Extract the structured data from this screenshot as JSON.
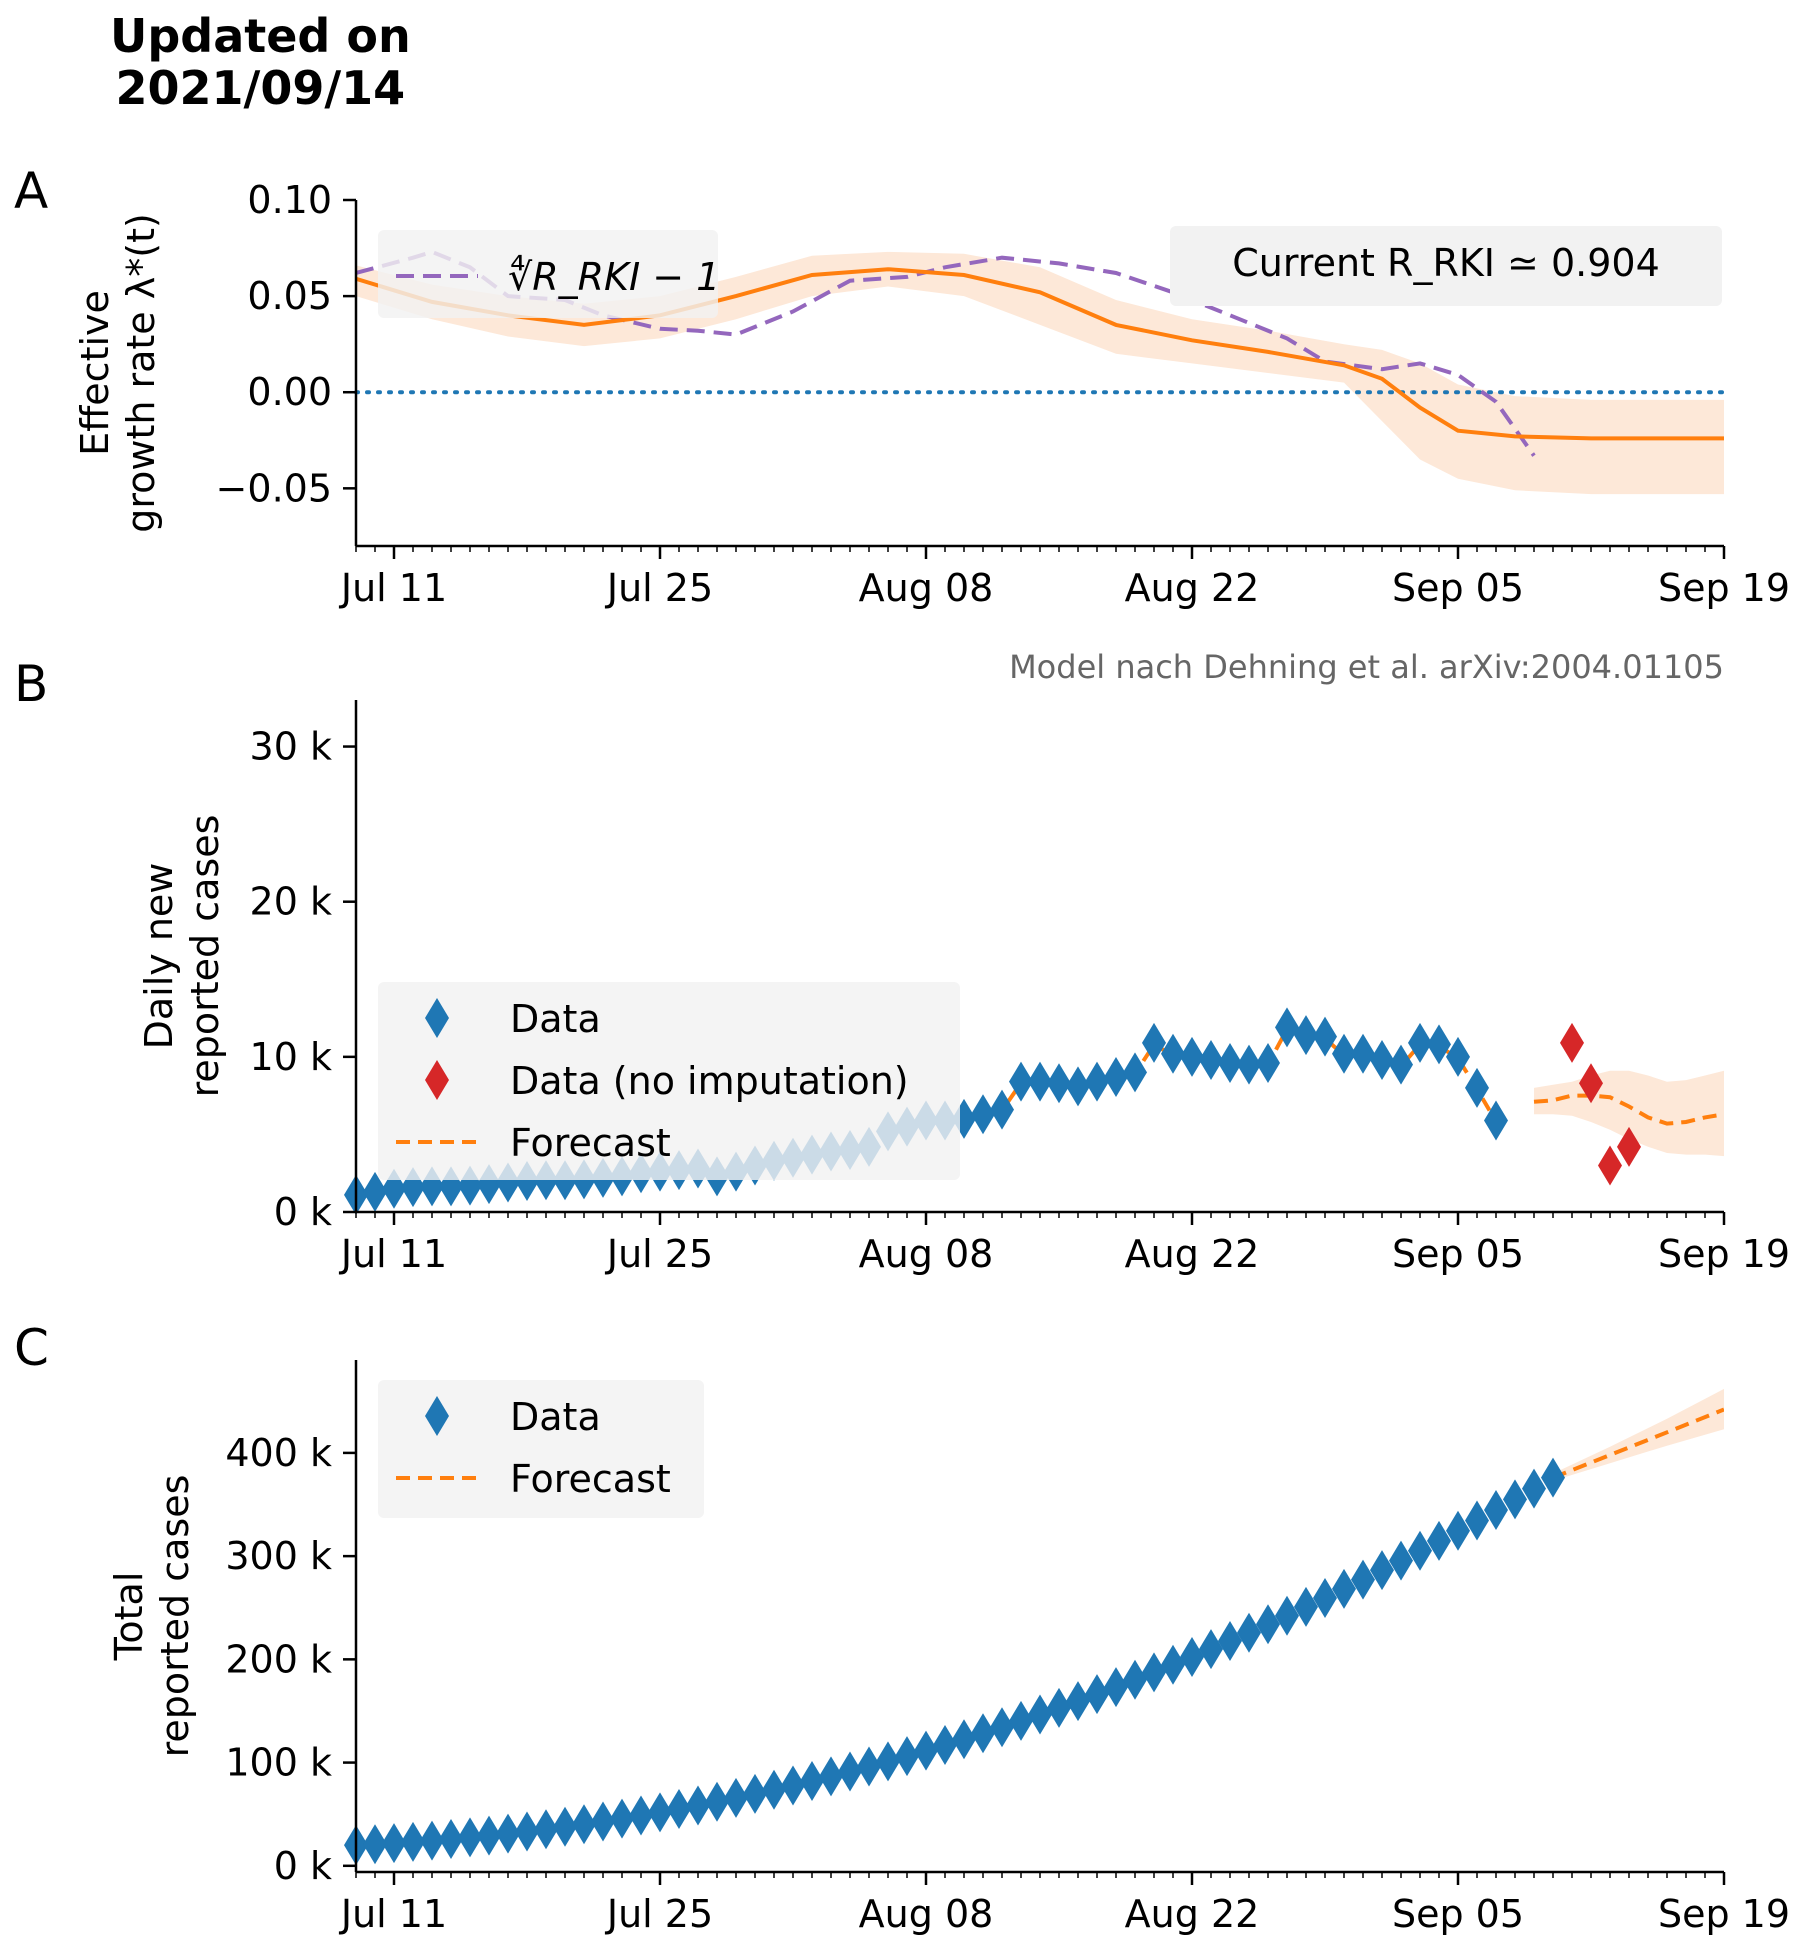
{
  "header": {
    "title_line1": "Updated on",
    "title_line2": "2021/09/14"
  },
  "panel_letters": [
    "A",
    "B",
    "C"
  ],
  "credit": "Model nach Dehning et al. arXiv:2004.01105",
  "colors": {
    "data": "#1f77b4",
    "model": "#ff7f0e",
    "band": "#fde8d8",
    "rki": "#9467bd",
    "zero": "#1f77b4",
    "no_imputation": "#d62728",
    "legend_bg": "#f2f2f2"
  },
  "x_axis": {
    "tick_labels": [
      "Jul 11",
      "Jul 25",
      "Aug 08",
      "Aug 22",
      "Sep 05",
      "Sep 19"
    ]
  },
  "chart_data": [
    {
      "type": "line",
      "panel": "A",
      "ylabel_line1": "Effective",
      "ylabel_line2": "growth rate λ*(t)",
      "ylim": [
        -0.08,
        0.1
      ],
      "yticks": [
        "0.10",
        "0.05",
        "0.00",
        "−0.05"
      ],
      "ytick_values": [
        0.1,
        0.05,
        0.0,
        -0.05
      ],
      "xlim": [
        "2021-07-09",
        "2021-09-19"
      ],
      "legend_label": "∜R_RKI − 1",
      "annotation": "Current R_RKI ≃ 0.904",
      "series": [
        {
          "role": "model",
          "x": [
            "2021-07-09",
            "2021-07-13",
            "2021-07-17",
            "2021-07-21",
            "2021-07-25",
            "2021-07-29",
            "2021-08-02",
            "2021-08-06",
            "2021-08-10",
            "2021-08-14",
            "2021-08-18",
            "2021-08-22",
            "2021-08-26",
            "2021-08-30",
            "2021-09-01",
            "2021-09-03",
            "2021-09-05",
            "2021-09-08",
            "2021-09-12",
            "2021-09-19"
          ],
          "y": [
            0.059,
            0.047,
            0.04,
            0.035,
            0.04,
            0.05,
            0.061,
            0.064,
            0.061,
            0.052,
            0.035,
            0.027,
            0.021,
            0.014,
            0.007,
            -0.008,
            -0.02,
            -0.023,
            -0.024,
            -0.024
          ],
          "y_lower": [
            0.05,
            0.038,
            0.029,
            0.024,
            0.028,
            0.038,
            0.05,
            0.055,
            0.05,
            0.035,
            0.02,
            0.015,
            0.01,
            0.005,
            -0.015,
            -0.035,
            -0.045,
            -0.051,
            -0.053,
            -0.053
          ],
          "y_upper": [
            0.066,
            0.056,
            0.05,
            0.046,
            0.05,
            0.06,
            0.071,
            0.073,
            0.072,
            0.065,
            0.048,
            0.038,
            0.032,
            0.025,
            0.022,
            0.015,
            0.004,
            -0.002,
            -0.004,
            -0.004
          ]
        },
        {
          "role": "rki",
          "x": [
            "2021-07-09",
            "2021-07-12",
            "2021-07-13",
            "2021-07-15",
            "2021-07-17",
            "2021-07-20",
            "2021-07-22",
            "2021-07-25",
            "2021-07-27",
            "2021-07-29",
            "2021-08-01",
            "2021-08-04",
            "2021-08-07",
            "2021-08-09",
            "2021-08-12",
            "2021-08-15",
            "2021-08-18",
            "2021-08-21",
            "2021-08-24",
            "2021-08-27",
            "2021-08-29",
            "2021-09-01",
            "2021-09-03",
            "2021-09-05",
            "2021-09-07",
            "2021-09-09"
          ],
          "y": [
            0.062,
            0.07,
            0.073,
            0.065,
            0.05,
            0.048,
            0.04,
            0.033,
            0.032,
            0.03,
            0.042,
            0.058,
            0.06,
            0.065,
            0.07,
            0.067,
            0.062,
            0.052,
            0.04,
            0.028,
            0.016,
            0.012,
            0.015,
            0.009,
            -0.005,
            -0.033
          ]
        }
      ]
    },
    {
      "type": "scatter",
      "panel": "B",
      "ylabel_line1": "Daily new",
      "ylabel_line2": "reported cases",
      "ylim": [
        0,
        33000
      ],
      "yticks": [
        "30 k",
        "20 k",
        "10 k",
        "0 k"
      ],
      "ytick_values": [
        30000,
        20000,
        10000,
        0
      ],
      "xlim": [
        "2021-07-09",
        "2021-09-19"
      ],
      "legend": [
        "Data",
        "Data (no imputation)",
        "Forecast"
      ],
      "series": [
        {
          "name": "Data",
          "x_start": "2021-07-09",
          "values": [
            1100,
            1300,
            1500,
            1600,
            1650,
            1650,
            1700,
            1800,
            1900,
            2000,
            2050,
            2050,
            2100,
            2200,
            2300,
            2500,
            2600,
            2700,
            2800,
            2300,
            2600,
            3000,
            3300,
            3500,
            3700,
            3900,
            4000,
            4200,
            5200,
            5500,
            5900,
            5900,
            6000,
            6300,
            6600,
            8400,
            8400,
            8300,
            8100,
            8400,
            8700,
            9000,
            10900,
            10200,
            10000,
            9800,
            9600,
            9500,
            9600,
            11900,
            11400,
            11300,
            10200,
            10200,
            9800,
            9500,
            10900,
            10800,
            10000,
            8000,
            5900
          ]
        },
        {
          "name": "Data (no imputation)",
          "x": [
            "2021-09-11",
            "2021-09-12",
            "2021-09-13",
            "2021-09-14"
          ],
          "values": [
            10900,
            8300,
            3000,
            4200
          ]
        },
        {
          "name": "Forecast",
          "x": [
            "2021-09-09",
            "2021-09-10",
            "2021-09-11",
            "2021-09-12",
            "2021-09-13",
            "2021-09-14",
            "2021-09-15",
            "2021-09-16",
            "2021-09-17",
            "2021-09-18",
            "2021-09-19"
          ],
          "values": [
            7100,
            7200,
            7500,
            7500,
            7400,
            6800,
            6100,
            5700,
            5800,
            6100,
            6300
          ],
          "lower": [
            6300,
            6300,
            6200,
            5800,
            5300,
            4700,
            4200,
            3800,
            3700,
            3700,
            3600
          ],
          "upper": [
            8000,
            8200,
            8400,
            8800,
            9100,
            9100,
            8800,
            8400,
            8500,
            8800,
            9100
          ]
        }
      ]
    },
    {
      "type": "scatter",
      "panel": "C",
      "ylabel_line1": "Total",
      "ylabel_line2": "reported cases",
      "ylim": [
        -6000,
        490000
      ],
      "yticks": [
        "400 k",
        "300 k",
        "200 k",
        "100 k",
        "0 k"
      ],
      "ytick_values": [
        400000,
        300000,
        200000,
        100000,
        0
      ],
      "xlim": [
        "2021-07-09",
        "2021-09-19"
      ],
      "legend": [
        "Data",
        "Forecast"
      ],
      "series": [
        {
          "name": "Data",
          "x_start": "2021-07-09",
          "x_end": "2021-09-10",
          "start_value": 20000,
          "end_value": 376000
        },
        {
          "name": "Forecast",
          "x": [
            "2021-09-10",
            "2021-09-13",
            "2021-09-16",
            "2021-09-19"
          ],
          "values": [
            376000,
            398000,
            420000,
            442000
          ],
          "lower": [
            373000,
            390000,
            407000,
            423000
          ],
          "upper": [
            380000,
            406000,
            433000,
            462000
          ]
        }
      ]
    }
  ]
}
